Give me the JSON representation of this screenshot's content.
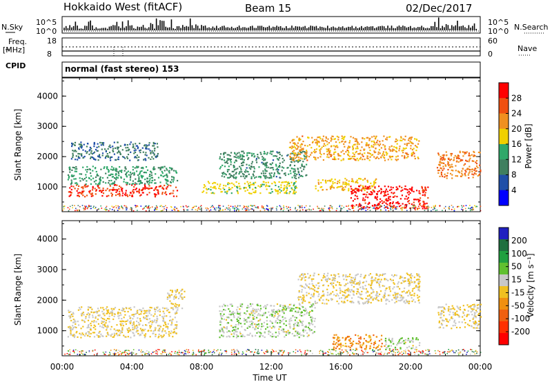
{
  "header": {
    "station": "Hokkaido West (fitACF)",
    "beam": "Beam 15",
    "date": "02/Dec/2017"
  },
  "aux_panels": {
    "nsky_label": "N.Sky",
    "nsearch_label": "N.Search",
    "freq_label": "Freq.",
    "freq_unit": "[MHz]",
    "nave_label": "Nave",
    "cpid_label": "CPID",
    "noise_ticks": [
      "10^5",
      "10^0"
    ],
    "freq_ticks": [
      "18",
      "8"
    ],
    "nave_ticks": [
      "60",
      "0"
    ],
    "cpid_text": "normal (fast stereo) 153"
  },
  "colors": {
    "power_scale": [
      "#0000ff",
      "#1f4fa8",
      "#3f7f5f",
      "#2fa86a",
      "#f0d000",
      "#f09020",
      "#f05010",
      "#ff0000"
    ],
    "velocity_scale": [
      "#2020c0",
      "#1f6f3f",
      "#20a040",
      "#60c030",
      "#c8c8c8",
      "#f0c020",
      "#f09010",
      "#f06010",
      "#ff3000",
      "#ff0000"
    ]
  },
  "chart_data": [
    {
      "type": "heatmap",
      "title": "",
      "xlabel": "Time UT",
      "ylabel": "Slant Range [km]",
      "xlim": [
        0,
        24
      ],
      "ylim": [
        180,
        4600
      ],
      "x_ticks": [
        "00:00",
        "04:00",
        "08:00",
        "12:00",
        "16:00",
        "20:00",
        "00:00"
      ],
      "y_ticks": [
        "1000",
        "2000",
        "3000",
        "4000"
      ],
      "colorbar": {
        "label": "Power [dB]",
        "ticks": [
          "4",
          "8",
          "12",
          "16",
          "20",
          "24",
          "28"
        ],
        "range": [
          0,
          30
        ]
      },
      "regions": [
        {
          "t": [
            0.3,
            6.6
          ],
          "r": [
            700,
            1100
          ],
          "value": 26
        },
        {
          "t": [
            0.3,
            6.6
          ],
          "r": [
            1100,
            1700
          ],
          "value": 12
        },
        {
          "t": [
            0.5,
            5.5
          ],
          "r": [
            1900,
            2500
          ],
          "value": 8
        },
        {
          "t": [
            8.0,
            13.5
          ],
          "r": [
            800,
            1200
          ],
          "value": 16
        },
        {
          "t": [
            9.0,
            14.0
          ],
          "r": [
            1300,
            2200
          ],
          "value": 10
        },
        {
          "t": [
            13.0,
            20.5
          ],
          "r": [
            1900,
            2700
          ],
          "value": 20
        },
        {
          "t": [
            14.5,
            18.0
          ],
          "r": [
            900,
            1300
          ],
          "value": 18
        },
        {
          "t": [
            16.5,
            21.0
          ],
          "r": [
            300,
            1050
          ],
          "value": 28
        },
        {
          "t": [
            21.5,
            24.0
          ],
          "r": [
            1300,
            2200
          ],
          "value": 22
        }
      ]
    },
    {
      "type": "heatmap",
      "title": "",
      "xlabel": "Time UT",
      "ylabel": "Slant Range [km]",
      "xlim": [
        0,
        24
      ],
      "ylim": [
        180,
        4600
      ],
      "x_ticks": [
        "00:00",
        "04:00",
        "08:00",
        "12:00",
        "16:00",
        "20:00",
        "00:00"
      ],
      "y_ticks": [
        "1000",
        "2000",
        "3000",
        "4000"
      ],
      "colorbar": {
        "label": "Velocity [m s⁻¹]",
        "ticks": [
          "200",
          "100",
          "50",
          "15",
          "-15",
          "-50",
          "-100",
          "-200"
        ],
        "range": [
          -250,
          250
        ]
      },
      "regions": [
        {
          "t": [
            0.3,
            6.6
          ],
          "r": [
            800,
            1800
          ],
          "value": 0
        },
        {
          "t": [
            6.0,
            7.0
          ],
          "r": [
            1700,
            2400
          ],
          "value": 0
        },
        {
          "t": [
            9.0,
            14.5
          ],
          "r": [
            800,
            1900
          ],
          "value": 40
        },
        {
          "t": [
            13.5,
            20.5
          ],
          "r": [
            1900,
            2900
          ],
          "value": 0
        },
        {
          "t": [
            15.5,
            18.5
          ],
          "r": [
            400,
            900
          ],
          "value": -80
        },
        {
          "t": [
            18.5,
            20.5
          ],
          "r": [
            400,
            800
          ],
          "value": 40
        },
        {
          "t": [
            21.5,
            24.0
          ],
          "r": [
            1100,
            1900
          ],
          "value": 0
        }
      ]
    }
  ]
}
